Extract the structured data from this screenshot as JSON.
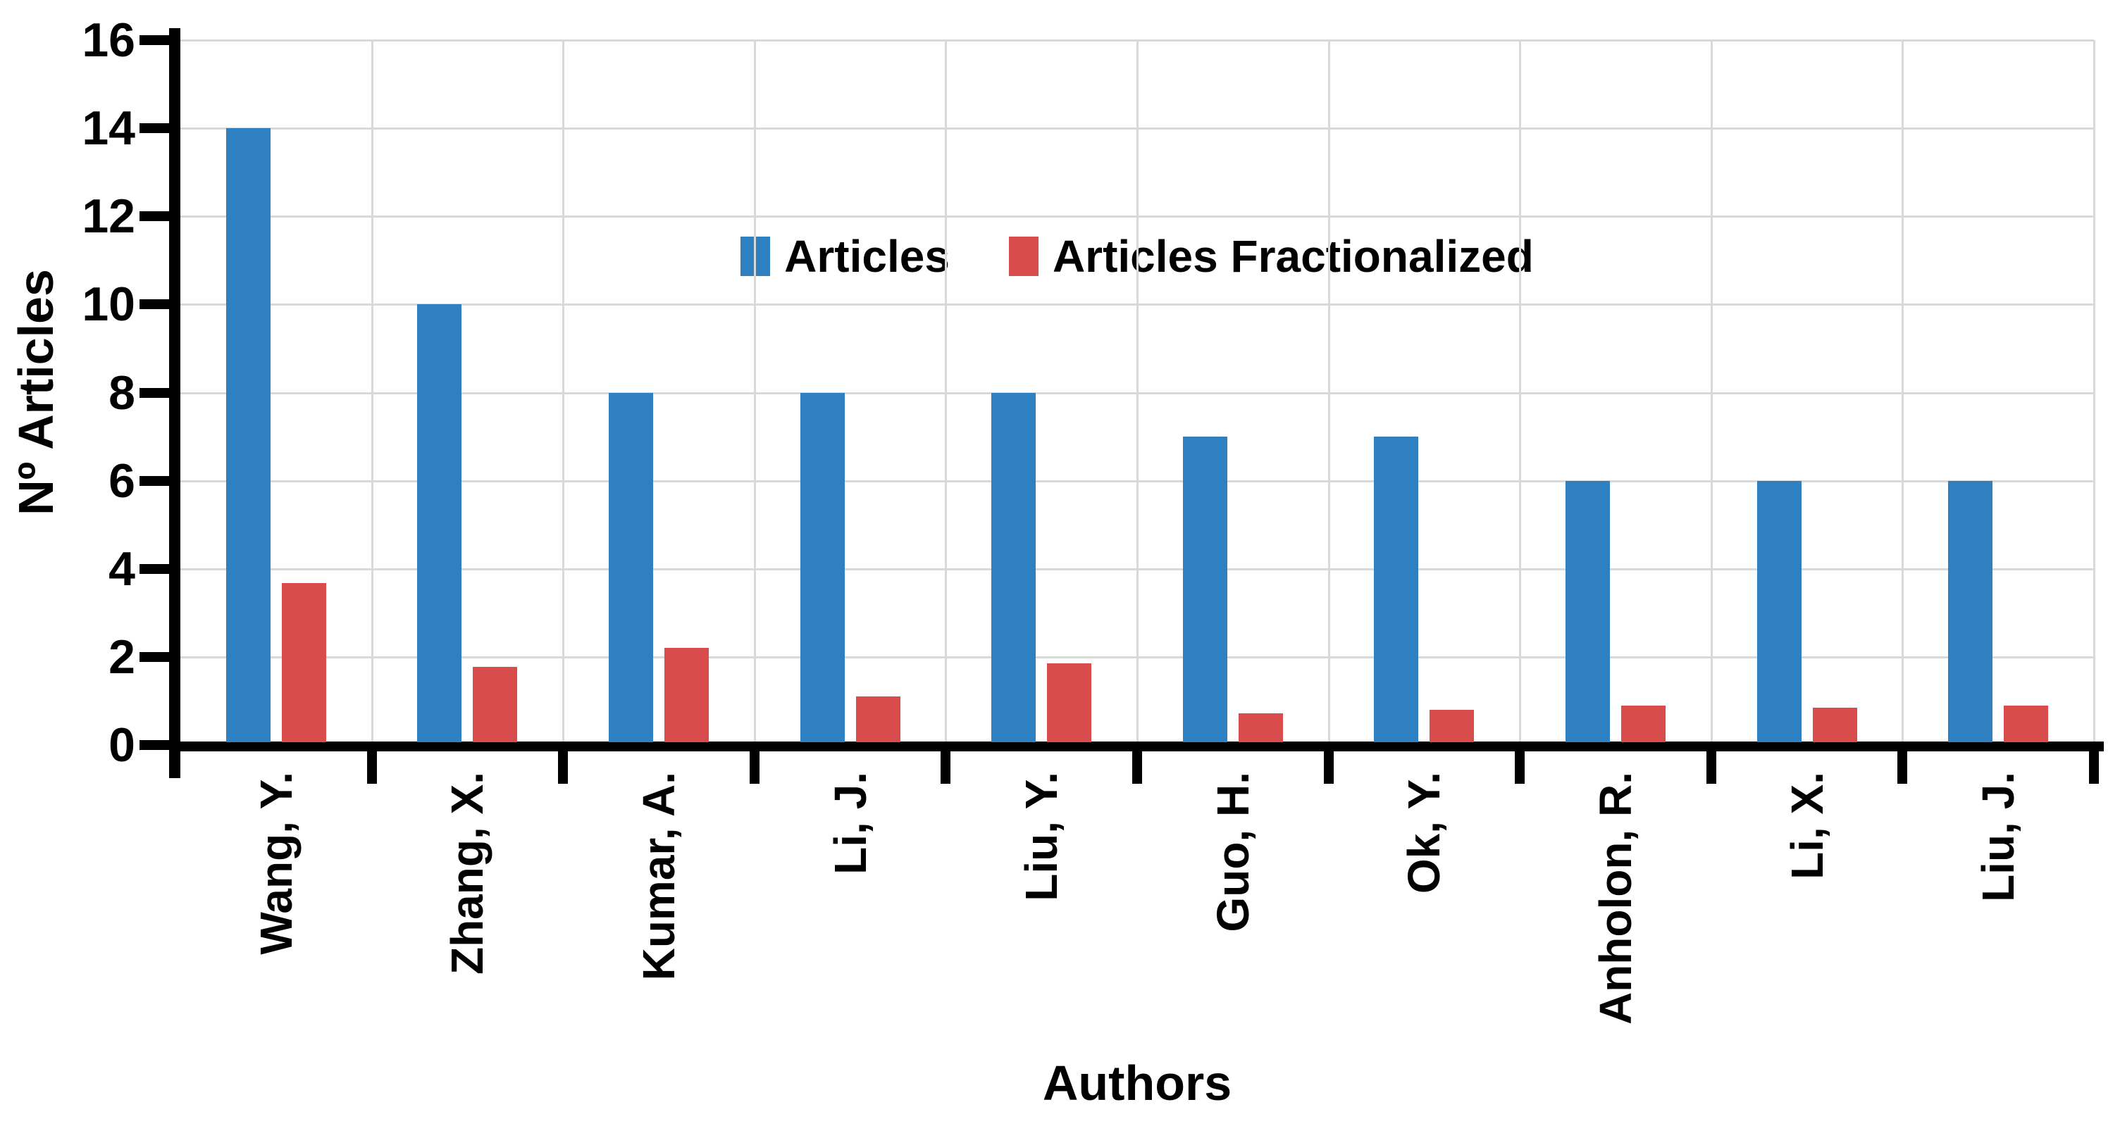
{
  "chart_data": {
    "type": "bar",
    "title": "",
    "xlabel": "Authors",
    "ylabel": "Nº Articles",
    "ylim": [
      0,
      16
    ],
    "yticks": [
      0,
      2,
      4,
      6,
      8,
      10,
      12,
      14,
      16
    ],
    "grid": true,
    "legend_position": "top-center-inside",
    "categories": [
      "Wang, Y.",
      "Zhang, X.",
      "Kumar, A.",
      "Li, J.",
      "Liu, Y.",
      "Guo, H.",
      "Ok, Y.",
      "Anholon, R.",
      "Li, X.",
      "Liu, J."
    ],
    "series": [
      {
        "name": "Articles",
        "color": "#2E80C1",
        "values": [
          14,
          10,
          8,
          8,
          8,
          7,
          7,
          6,
          6,
          6
        ]
      },
      {
        "name": "Articles Fractionalized",
        "color": "#D94C4C",
        "values": [
          3.67,
          1.78,
          2.2,
          1.1,
          1.85,
          0.72,
          0.8,
          0.9,
          0.85,
          0.9
        ]
      }
    ]
  },
  "colors": {
    "blue_series": "#2E80C1",
    "red_series": "#D94C4C",
    "gridline": "#D9D9D9",
    "axis": "#000000",
    "background": "#FFFFFF"
  }
}
